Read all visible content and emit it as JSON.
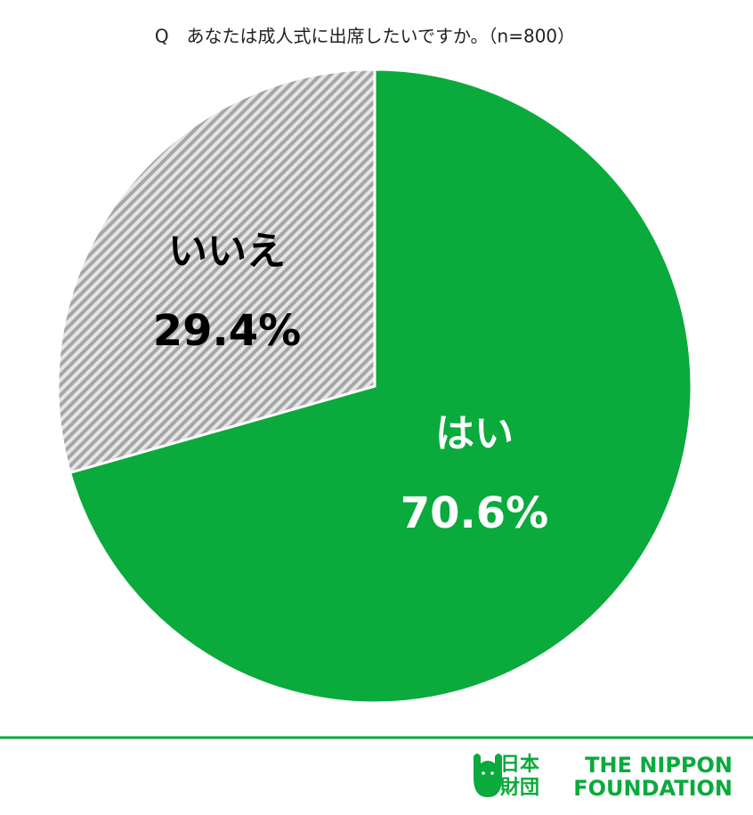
{
  "chart_data": {
    "type": "pie",
    "title": "Q　あなたは成人式に出席したいですか。（n=800）",
    "categories": [
      "はい",
      "いいえ"
    ],
    "values": [
      70.6,
      29.4
    ],
    "value_labels": [
      "70.6%",
      "29.4%"
    ],
    "colors": [
      "#0aaa3c",
      "#a6a6a6"
    ],
    "label_colors": [
      "#ffffff",
      "#000000"
    ]
  },
  "footer": {
    "logo_jp": [
      "日本",
      "財団"
    ],
    "logo_en": [
      "THE NIPPON",
      "FOUNDATION"
    ]
  }
}
